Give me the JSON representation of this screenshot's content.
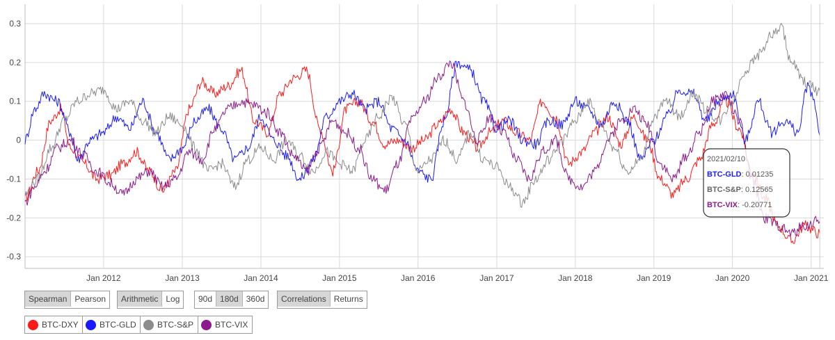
{
  "chart_data": {
    "type": "line",
    "title": "",
    "xlabel": "",
    "ylabel": "",
    "ylim": [
      -0.33,
      0.35
    ],
    "xlim": [
      "2011-01-01",
      "2021-03-01"
    ],
    "y_ticks": [
      "0.3",
      "0.2",
      "0.1",
      "0",
      "-0.1",
      "-0.2",
      "-0.3"
    ],
    "y_tick_values": [
      0.3,
      0.2,
      0.1,
      0,
      -0.1,
      -0.2,
      -0.3
    ],
    "x_ticks": [
      "Jan 2012",
      "Jan 2013",
      "Jan 2014",
      "Jan 2015",
      "Jan 2016",
      "Jan 2017",
      "Jan 2018",
      "Jan 2019",
      "Jan 2020",
      "Jan 2021"
    ],
    "x_tick_dates": [
      "2012-01-01",
      "2013-01-01",
      "2014-01-01",
      "2015-01-01",
      "2016-01-01",
      "2017-01-01",
      "2018-01-01",
      "2019-01-01",
      "2020-01-01",
      "2021-01-01"
    ],
    "grid": true,
    "series": [
      {
        "name": "BTC-DXY",
        "color": "#ff1a1a",
        "points": [
          [
            "2011-01-01",
            -0.15
          ],
          [
            "2011-03-01",
            -0.08
          ],
          [
            "2011-05-01",
            0.05
          ],
          [
            "2011-06-15",
            0.08
          ],
          [
            "2011-08-01",
            -0.02
          ],
          [
            "2011-10-01",
            -0.06
          ],
          [
            "2011-12-01",
            -0.1
          ],
          [
            "2012-02-01",
            -0.09
          ],
          [
            "2012-04-01",
            -0.06
          ],
          [
            "2012-06-01",
            -0.03
          ],
          [
            "2012-08-01",
            -0.08
          ],
          [
            "2012-10-01",
            -0.13
          ],
          [
            "2012-12-01",
            -0.08
          ],
          [
            "2013-02-01",
            0.08
          ],
          [
            "2013-04-01",
            0.15
          ],
          [
            "2013-06-01",
            0.12
          ],
          [
            "2013-08-01",
            0.14
          ],
          [
            "2013-10-01",
            0.18
          ],
          [
            "2013-12-01",
            0.05
          ],
          [
            "2014-02-01",
            0.02
          ],
          [
            "2014-04-01",
            0.12
          ],
          [
            "2014-06-01",
            0.16
          ],
          [
            "2014-08-01",
            0.18
          ],
          [
            "2014-10-01",
            0.03
          ],
          [
            "2014-12-01",
            -0.08
          ],
          [
            "2015-02-01",
            0.08
          ],
          [
            "2015-04-01",
            0.1
          ],
          [
            "2015-06-01",
            0.05
          ],
          [
            "2015-08-01",
            -0.01
          ],
          [
            "2015-10-01",
            0.0
          ],
          [
            "2015-12-01",
            -0.02
          ],
          [
            "2016-02-01",
            0.0
          ],
          [
            "2016-04-01",
            0.04
          ],
          [
            "2016-06-01",
            0.08
          ],
          [
            "2016-08-01",
            0.02
          ],
          [
            "2016-10-01",
            -0.02
          ],
          [
            "2016-12-01",
            0.02
          ],
          [
            "2017-02-01",
            0.05
          ],
          [
            "2017-04-01",
            0.02
          ],
          [
            "2017-06-01",
            0.0
          ],
          [
            "2017-08-01",
            0.1
          ],
          [
            "2017-10-01",
            0.06
          ],
          [
            "2017-12-01",
            -0.06
          ],
          [
            "2018-02-01",
            -0.03
          ],
          [
            "2018-04-01",
            0.02
          ],
          [
            "2018-06-01",
            0.06
          ],
          [
            "2018-08-01",
            -0.01
          ],
          [
            "2018-10-01",
            0.06
          ],
          [
            "2018-12-01",
            0.0
          ],
          [
            "2019-02-01",
            -0.1
          ],
          [
            "2019-04-01",
            -0.14
          ],
          [
            "2019-06-01",
            -0.1
          ],
          [
            "2019-08-01",
            -0.05
          ],
          [
            "2019-10-01",
            0.04
          ],
          [
            "2019-12-01",
            0.1
          ],
          [
            "2020-02-01",
            0.03
          ],
          [
            "2020-04-01",
            -0.08
          ],
          [
            "2020-06-01",
            -0.15
          ],
          [
            "2020-08-01",
            -0.22
          ],
          [
            "2020-10-01",
            -0.26
          ],
          [
            "2020-12-01",
            -0.22
          ],
          [
            "2021-02-10",
            -0.24
          ]
        ]
      },
      {
        "name": "BTC-GLD",
        "color": "#1a1aff",
        "points": [
          [
            "2011-01-01",
            0.0
          ],
          [
            "2011-02-15",
            0.08
          ],
          [
            "2011-04-01",
            0.12
          ],
          [
            "2011-06-01",
            0.1
          ],
          [
            "2011-08-01",
            0.02
          ],
          [
            "2011-09-01",
            -0.05
          ],
          [
            "2011-11-01",
            0.0
          ],
          [
            "2012-01-01",
            0.02
          ],
          [
            "2012-03-01",
            0.06
          ],
          [
            "2012-05-01",
            0.03
          ],
          [
            "2012-07-01",
            0.1
          ],
          [
            "2012-09-01",
            0.02
          ],
          [
            "2012-11-01",
            -0.05
          ],
          [
            "2013-01-01",
            -0.02
          ],
          [
            "2013-03-01",
            0.05
          ],
          [
            "2013-05-01",
            0.08
          ],
          [
            "2013-07-01",
            0.03
          ],
          [
            "2013-09-01",
            -0.05
          ],
          [
            "2013-11-01",
            -0.02
          ],
          [
            "2014-01-01",
            0.06
          ],
          [
            "2014-03-01",
            0.0
          ],
          [
            "2014-05-01",
            -0.04
          ],
          [
            "2014-07-01",
            -0.1
          ],
          [
            "2014-09-01",
            -0.05
          ],
          [
            "2014-11-01",
            0.06
          ],
          [
            "2015-01-01",
            0.1
          ],
          [
            "2015-03-01",
            0.12
          ],
          [
            "2015-05-01",
            0.08
          ],
          [
            "2015-07-01",
            0.1
          ],
          [
            "2015-09-01",
            0.03
          ],
          [
            "2015-11-01",
            0.0
          ],
          [
            "2016-01-01",
            -0.08
          ],
          [
            "2016-03-01",
            -0.1
          ],
          [
            "2016-05-01",
            0.05
          ],
          [
            "2016-07-01",
            0.2
          ],
          [
            "2016-09-01",
            0.18
          ],
          [
            "2016-11-01",
            0.1
          ],
          [
            "2017-01-01",
            0.03
          ],
          [
            "2017-03-01",
            0.05
          ],
          [
            "2017-05-01",
            0.0
          ],
          [
            "2017-07-01",
            -0.01
          ],
          [
            "2017-09-01",
            0.05
          ],
          [
            "2017-11-01",
            0.04
          ],
          [
            "2018-01-01",
            0.1
          ],
          [
            "2018-03-01",
            0.08
          ],
          [
            "2018-05-01",
            0.04
          ],
          [
            "2018-07-01",
            0.1
          ],
          [
            "2018-09-01",
            0.05
          ],
          [
            "2018-11-01",
            -0.05
          ],
          [
            "2019-01-01",
            0.0
          ],
          [
            "2019-03-01",
            0.06
          ],
          [
            "2019-05-01",
            0.13
          ],
          [
            "2019-07-01",
            0.12
          ],
          [
            "2019-09-01",
            0.05
          ],
          [
            "2019-11-01",
            0.1
          ],
          [
            "2020-01-01",
            0.12
          ],
          [
            "2020-03-01",
            0.0
          ],
          [
            "2020-05-01",
            0.1
          ],
          [
            "2020-07-01",
            0.02
          ],
          [
            "2020-09-01",
            0.05
          ],
          [
            "2020-11-01",
            0.02
          ],
          [
            "2020-12-15",
            0.14
          ],
          [
            "2021-01-15",
            0.1
          ],
          [
            "2021-02-10",
            0.01235
          ]
        ]
      },
      {
        "name": "BTC-S&P",
        "color": "#8c8c8c",
        "points": [
          [
            "2011-01-01",
            -0.14
          ],
          [
            "2011-03-01",
            -0.1
          ],
          [
            "2011-05-01",
            -0.02
          ],
          [
            "2011-07-01",
            0.05
          ],
          [
            "2011-09-01",
            0.1
          ],
          [
            "2011-11-01",
            0.12
          ],
          [
            "2012-01-01",
            0.13
          ],
          [
            "2012-03-01",
            0.08
          ],
          [
            "2012-05-01",
            0.1
          ],
          [
            "2012-07-01",
            0.05
          ],
          [
            "2012-09-01",
            0.02
          ],
          [
            "2012-11-01",
            0.06
          ],
          [
            "2013-01-01",
            0.04
          ],
          [
            "2013-03-01",
            -0.02
          ],
          [
            "2013-05-01",
            -0.08
          ],
          [
            "2013-07-01",
            -0.06
          ],
          [
            "2013-09-01",
            -0.12
          ],
          [
            "2013-11-01",
            -0.05
          ],
          [
            "2014-01-01",
            -0.02
          ],
          [
            "2014-03-01",
            -0.05
          ],
          [
            "2014-05-01",
            0.0
          ],
          [
            "2014-07-01",
            -0.04
          ],
          [
            "2014-09-01",
            -0.08
          ],
          [
            "2014-11-01",
            -0.03
          ],
          [
            "2015-01-01",
            -0.06
          ],
          [
            "2015-03-01",
            -0.08
          ],
          [
            "2015-05-01",
            0.0
          ],
          [
            "2015-07-01",
            0.06
          ],
          [
            "2015-09-01",
            0.11
          ],
          [
            "2015-11-01",
            0.04
          ],
          [
            "2016-01-01",
            -0.08
          ],
          [
            "2016-03-01",
            -0.05
          ],
          [
            "2016-05-01",
            0.0
          ],
          [
            "2016-07-01",
            -0.05
          ],
          [
            "2016-09-01",
            0.02
          ],
          [
            "2016-11-01",
            -0.05
          ],
          [
            "2017-01-01",
            -0.07
          ],
          [
            "2017-03-01",
            -0.12
          ],
          [
            "2017-05-01",
            -0.16
          ],
          [
            "2017-07-01",
            -0.1
          ],
          [
            "2017-09-01",
            -0.05
          ],
          [
            "2017-11-01",
            0.0
          ],
          [
            "2018-01-01",
            0.05
          ],
          [
            "2018-03-01",
            0.1
          ],
          [
            "2018-05-01",
            0.04
          ],
          [
            "2018-07-01",
            -0.02
          ],
          [
            "2018-09-01",
            -0.08
          ],
          [
            "2018-11-01",
            -0.05
          ],
          [
            "2019-01-01",
            0.06
          ],
          [
            "2019-03-01",
            0.1
          ],
          [
            "2019-05-01",
            0.06
          ],
          [
            "2019-07-01",
            0.12
          ],
          [
            "2019-09-01",
            0.08
          ],
          [
            "2019-11-01",
            0.05
          ],
          [
            "2020-01-01",
            0.1
          ],
          [
            "2020-03-01",
            0.18
          ],
          [
            "2020-05-01",
            0.22
          ],
          [
            "2020-07-01",
            0.27
          ],
          [
            "2020-08-15",
            0.29
          ],
          [
            "2020-10-01",
            0.2
          ],
          [
            "2020-12-01",
            0.15
          ],
          [
            "2021-02-10",
            0.12565
          ]
        ]
      },
      {
        "name": "BTC-VIX",
        "color": "#8b1a8b",
        "points": [
          [
            "2011-01-01",
            -0.16
          ],
          [
            "2011-02-15",
            -0.12
          ],
          [
            "2011-04-01",
            -0.08
          ],
          [
            "2011-06-01",
            -0.02
          ],
          [
            "2011-08-01",
            0.0
          ],
          [
            "2011-10-01",
            -0.04
          ],
          [
            "2011-12-01",
            -0.08
          ],
          [
            "2012-02-01",
            -0.11
          ],
          [
            "2012-04-01",
            -0.14
          ],
          [
            "2012-06-01",
            -0.1
          ],
          [
            "2012-08-01",
            -0.08
          ],
          [
            "2012-10-01",
            -0.12
          ],
          [
            "2012-12-01",
            -0.1
          ],
          [
            "2013-02-01",
            -0.03
          ],
          [
            "2013-04-01",
            -0.05
          ],
          [
            "2013-06-01",
            0.03
          ],
          [
            "2013-08-01",
            0.08
          ],
          [
            "2013-10-01",
            0.1
          ],
          [
            "2013-12-01",
            0.09
          ],
          [
            "2014-02-01",
            0.07
          ],
          [
            "2014-04-01",
            0.02
          ],
          [
            "2014-06-01",
            -0.04
          ],
          [
            "2014-08-01",
            -0.08
          ],
          [
            "2014-10-01",
            -0.02
          ],
          [
            "2014-12-01",
            0.05
          ],
          [
            "2015-02-01",
            0.02
          ],
          [
            "2015-04-01",
            -0.02
          ],
          [
            "2015-06-01",
            -0.1
          ],
          [
            "2015-08-01",
            -0.13
          ],
          [
            "2015-10-01",
            -0.06
          ],
          [
            "2015-12-01",
            0.05
          ],
          [
            "2016-02-01",
            0.1
          ],
          [
            "2016-04-01",
            0.16
          ],
          [
            "2016-06-01",
            0.2
          ],
          [
            "2016-08-01",
            0.1
          ],
          [
            "2016-10-01",
            0.0
          ],
          [
            "2016-12-01",
            0.06
          ],
          [
            "2017-02-01",
            0.02
          ],
          [
            "2017-04-01",
            -0.05
          ],
          [
            "2017-06-01",
            -0.1
          ],
          [
            "2017-08-01",
            -0.03
          ],
          [
            "2017-10-01",
            0.0
          ],
          [
            "2017-12-01",
            -0.1
          ],
          [
            "2018-02-01",
            -0.12
          ],
          [
            "2018-04-01",
            -0.08
          ],
          [
            "2018-06-01",
            0.0
          ],
          [
            "2018-08-01",
            0.05
          ],
          [
            "2018-10-01",
            0.08
          ],
          [
            "2018-12-01",
            0.04
          ],
          [
            "2019-02-01",
            -0.06
          ],
          [
            "2019-04-01",
            -0.1
          ],
          [
            "2019-06-01",
            -0.04
          ],
          [
            "2019-08-01",
            0.02
          ],
          [
            "2019-10-01",
            0.1
          ],
          [
            "2019-12-01",
            0.12
          ],
          [
            "2020-02-01",
            0.05
          ],
          [
            "2020-04-01",
            -0.1
          ],
          [
            "2020-06-01",
            -0.2
          ],
          [
            "2020-08-01",
            -0.22
          ],
          [
            "2020-10-01",
            -0.24
          ],
          [
            "2020-12-01",
            -0.22
          ],
          [
            "2021-02-10",
            -0.20771
          ]
        ]
      }
    ],
    "tooltip": {
      "date": "2021/02/10",
      "rows": [
        {
          "label": "BTC-GLD",
          "value": "0.01235",
          "color": "#1a1aff"
        },
        {
          "label": "BTC-S&P",
          "value": "0.12565",
          "color": "#666666"
        },
        {
          "label": "BTC-VIX",
          "value": "-0.20771",
          "color": "#8b1a8b"
        }
      ]
    }
  },
  "controls": {
    "method": {
      "options": [
        "Spearman",
        "Pearson"
      ],
      "selected": "Spearman"
    },
    "scale": {
      "options": [
        "Arithmetic",
        "Log"
      ],
      "selected": "Arithmetic"
    },
    "window": {
      "options": [
        "90d",
        "180d",
        "360d"
      ],
      "selected": "180d"
    },
    "view": {
      "options": [
        "Correlations",
        "Returns"
      ],
      "selected": "Correlations"
    }
  },
  "legend": [
    {
      "label": "BTC-DXY",
      "color": "#ff1a1a"
    },
    {
      "label": "BTC-GLD",
      "color": "#1a1aff"
    },
    {
      "label": "BTC-S&P",
      "color": "#8c8c8c"
    },
    {
      "label": "BTC-VIX",
      "color": "#8b1a8b"
    }
  ]
}
